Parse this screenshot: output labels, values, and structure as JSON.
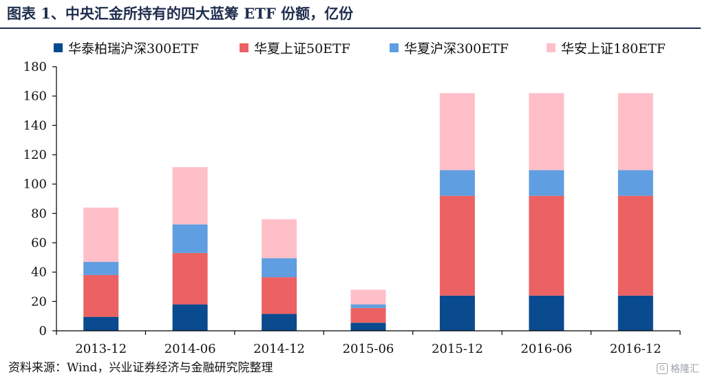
{
  "title": "图表 1、中央汇金所持有的四大蓝筹 ETF 份额，亿份",
  "source": "资料来源：Wind，兴业证券经济与金融研究院整理",
  "watermark": "格隆汇",
  "colors": {
    "huatai": "#0a4a8f",
    "huaxia50": "#ec6162",
    "huaxia300": "#5f9ee0",
    "huaan180": "#ffbfc8"
  },
  "chart_data": {
    "type": "bar",
    "stacked": true,
    "categories": [
      "2013-12",
      "2014-06",
      "2014-12",
      "2015-06",
      "2015-12",
      "2016-06",
      "2016-12"
    ],
    "series": [
      {
        "name": "华泰柏瑞沪深300ETF",
        "color": "#0a4a8f",
        "values": [
          9.5,
          18,
          11.5,
          5.5,
          24,
          24,
          24
        ]
      },
      {
        "name": "华夏上证50ETF",
        "color": "#ec6162",
        "values": [
          28.5,
          35,
          25,
          10,
          68,
          68,
          68
        ]
      },
      {
        "name": "华夏沪深300ETF",
        "color": "#5f9ee0",
        "values": [
          9,
          19.5,
          13,
          2.5,
          17.5,
          17.5,
          17.5
        ]
      },
      {
        "name": "华安上证180ETF",
        "color": "#ffbfc8",
        "values": [
          37,
          39,
          26.5,
          10,
          52.5,
          52.5,
          52.5
        ]
      }
    ],
    "ylim": [
      0,
      180
    ],
    "yticks": [
      0,
      20,
      40,
      60,
      80,
      100,
      120,
      140,
      160,
      180
    ],
    "grid": false,
    "legend_position": "top"
  }
}
